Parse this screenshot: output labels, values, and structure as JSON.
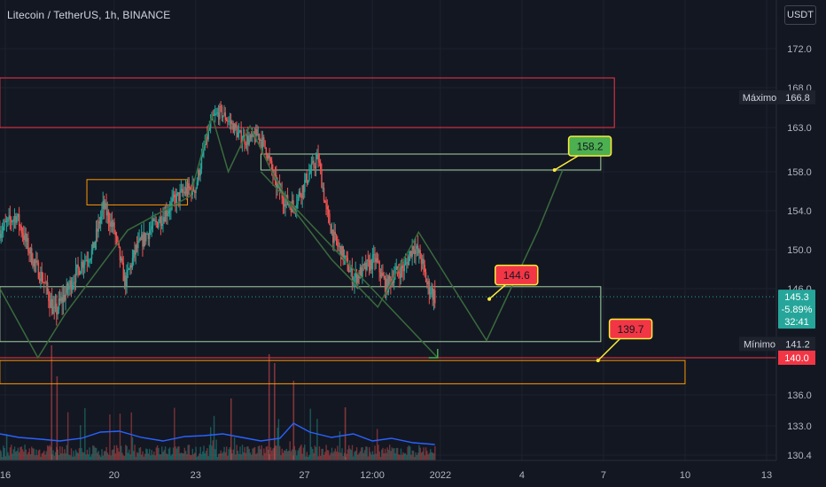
{
  "header": {
    "symbol_line": "Litecoin / TetherUS, 1h, BINANCE",
    "currency_button": "USDT"
  },
  "colors": {
    "background": "#131722",
    "grid": "#1e222d",
    "up": "#26a69a",
    "down": "#ef5350",
    "volume_ma": "#2962ff",
    "zone_red": "#f23645",
    "zone_orange": "#ff9800",
    "zone_green": "#a5d6a7",
    "pattern_green": "#3a6b3c",
    "target_green": "#4caf50",
    "target_red": "#f23645",
    "marker_yellow": "#ffeb3b"
  },
  "chart_data": {
    "type": "candlestick",
    "symbol": "Litecoin / TetherUS",
    "interval": "1h",
    "exchange": "BINANCE",
    "y_axis": {
      "ticks": [
        172.0,
        168.0,
        163.0,
        158.0,
        154.0,
        150.0,
        146.0,
        140.0,
        136.0,
        133.0,
        130.4
      ],
      "range": [
        130.0,
        174.0
      ]
    },
    "x_axis": {
      "ticks": [
        {
          "label": "16",
          "day": 16
        },
        {
          "label": "20",
          "day": 20
        },
        {
          "label": "23",
          "day": 23
        },
        {
          "label": "27",
          "day": 27
        },
        {
          "label": "12:00",
          "day": 29.5
        },
        {
          "label": "2022",
          "day": 32
        },
        {
          "label": "4",
          "day": 35
        },
        {
          "label": "7",
          "day": 38
        },
        {
          "label": "10",
          "day": 41
        },
        {
          "label": "13",
          "day": 44
        }
      ],
      "range": [
        15.8,
        46.0
      ]
    },
    "price_path": [
      [
        15.8,
        152.0
      ],
      [
        16.4,
        153.5
      ],
      [
        17.0,
        149.0
      ],
      [
        17.4,
        146.8
      ],
      [
        17.8,
        143.8
      ],
      [
        18.3,
        146.0
      ],
      [
        18.8,
        148.6
      ],
      [
        19.2,
        149.8
      ],
      [
        19.6,
        154.5
      ],
      [
        20.0,
        152.0
      ],
      [
        20.4,
        146.6
      ],
      [
        20.8,
        150.0
      ],
      [
        21.3,
        152.0
      ],
      [
        21.8,
        153.5
      ],
      [
        22.2,
        155.0
      ],
      [
        22.6,
        156.0
      ],
      [
        23.0,
        156.4
      ],
      [
        23.3,
        160.5
      ],
      [
        23.6,
        164.0
      ],
      [
        23.9,
        165.0
      ],
      [
        24.3,
        163.5
      ],
      [
        24.6,
        162.0
      ],
      [
        25.0,
        161.5
      ],
      [
        25.3,
        162.2
      ],
      [
        25.6,
        160.5
      ],
      [
        25.9,
        157.0
      ],
      [
        26.3,
        155.0
      ],
      [
        26.6,
        154.5
      ],
      [
        26.9,
        156.2
      ],
      [
        27.2,
        158.0
      ],
      [
        27.5,
        159.6
      ],
      [
        27.8,
        154.0
      ],
      [
        28.1,
        151.0
      ],
      [
        28.4,
        149.5
      ],
      [
        28.8,
        147.0
      ],
      [
        29.2,
        148.0
      ],
      [
        29.6,
        149.0
      ],
      [
        30.0,
        146.2
      ],
      [
        30.3,
        147.5
      ],
      [
        30.7,
        148.2
      ],
      [
        31.0,
        150.5
      ],
      [
        31.3,
        149.0
      ],
      [
        31.5,
        146.5
      ],
      [
        31.8,
        145.3
      ]
    ],
    "zones": [
      {
        "color": "red",
        "day_start": 15.8,
        "day_end": 38.4,
        "price_low": 163.0,
        "price_high": 169.0
      },
      {
        "color": "green",
        "day_start": 25.4,
        "day_end": 37.9,
        "price_low": 158.2,
        "price_high": 160.0
      },
      {
        "color": "orange",
        "day_start": 19.0,
        "day_end": 22.7,
        "price_low": 154.6,
        "price_high": 157.2
      },
      {
        "color": "green",
        "day_start": 15.8,
        "day_end": 37.9,
        "price_low": 141.4,
        "price_high": 146.2
      },
      {
        "color": "orange",
        "day_start": 15.8,
        "day_end": 41.0,
        "price_low": 137.2,
        "price_high": 139.7
      }
    ],
    "pattern_line": [
      [
        15.8,
        146.0
      ],
      [
        17.2,
        140.0
      ],
      [
        18.2,
        143.8
      ],
      [
        20.5,
        152.0
      ],
      [
        22.8,
        155.5
      ],
      [
        23.6,
        164.5
      ],
      [
        24.2,
        158.0
      ],
      [
        25.0,
        163.2
      ],
      [
        25.8,
        158.0
      ],
      [
        26.5,
        154.5
      ],
      [
        28.0,
        149.0
      ],
      [
        29.7,
        144.4
      ],
      [
        31.2,
        151.8
      ],
      [
        32.5,
        146.0
      ],
      [
        33.7,
        141.5
      ],
      [
        35.6,
        152.0
      ],
      [
        36.5,
        158.2
      ]
    ],
    "arrow_line": [
      [
        25.4,
        158.0
      ],
      [
        31.9,
        140.0
      ]
    ],
    "max_min_markers": [
      {
        "label": "Máximo",
        "value": "166.8",
        "price": 166.8
      },
      {
        "label": "Mínimo",
        "value": "141.2",
        "price": 141.2
      }
    ],
    "target_labels": [
      {
        "value": "158.2",
        "color": "green",
        "anchor_day": 36.2,
        "anchor_price": 158.2,
        "box_day": 37.5,
        "box_price": 160.9
      },
      {
        "value": "144.6",
        "color": "red",
        "anchor_day": 33.8,
        "anchor_price": 145.1,
        "box_day": 34.8,
        "box_price": 147.4
      },
      {
        "value": "139.7",
        "color": "red",
        "anchor_day": 37.8,
        "anchor_price": 139.7,
        "box_day": 39.0,
        "box_price": 142.5
      }
    ],
    "current_price": {
      "value": "145.3",
      "change": "-5.89%",
      "countdown": "32:41",
      "price": 145.3
    },
    "red_line_label": {
      "value": "140.0",
      "price": 140.0
    },
    "volume_ma_path": [
      [
        15.8,
        0.3
      ],
      [
        16.5,
        0.26
      ],
      [
        17.3,
        0.24
      ],
      [
        18.0,
        0.22
      ],
      [
        18.8,
        0.25
      ],
      [
        19.5,
        0.32
      ],
      [
        20.2,
        0.33
      ],
      [
        21.0,
        0.26
      ],
      [
        21.8,
        0.22
      ],
      [
        22.6,
        0.27
      ],
      [
        23.3,
        0.28
      ],
      [
        24.0,
        0.3
      ],
      [
        24.7,
        0.26
      ],
      [
        25.4,
        0.22
      ],
      [
        26.1,
        0.25
      ],
      [
        26.6,
        0.42
      ],
      [
        27.2,
        0.32
      ],
      [
        28.0,
        0.26
      ],
      [
        28.8,
        0.3
      ],
      [
        29.5,
        0.22
      ],
      [
        30.2,
        0.25
      ],
      [
        31.0,
        0.2
      ],
      [
        31.8,
        0.18
      ]
    ]
  }
}
